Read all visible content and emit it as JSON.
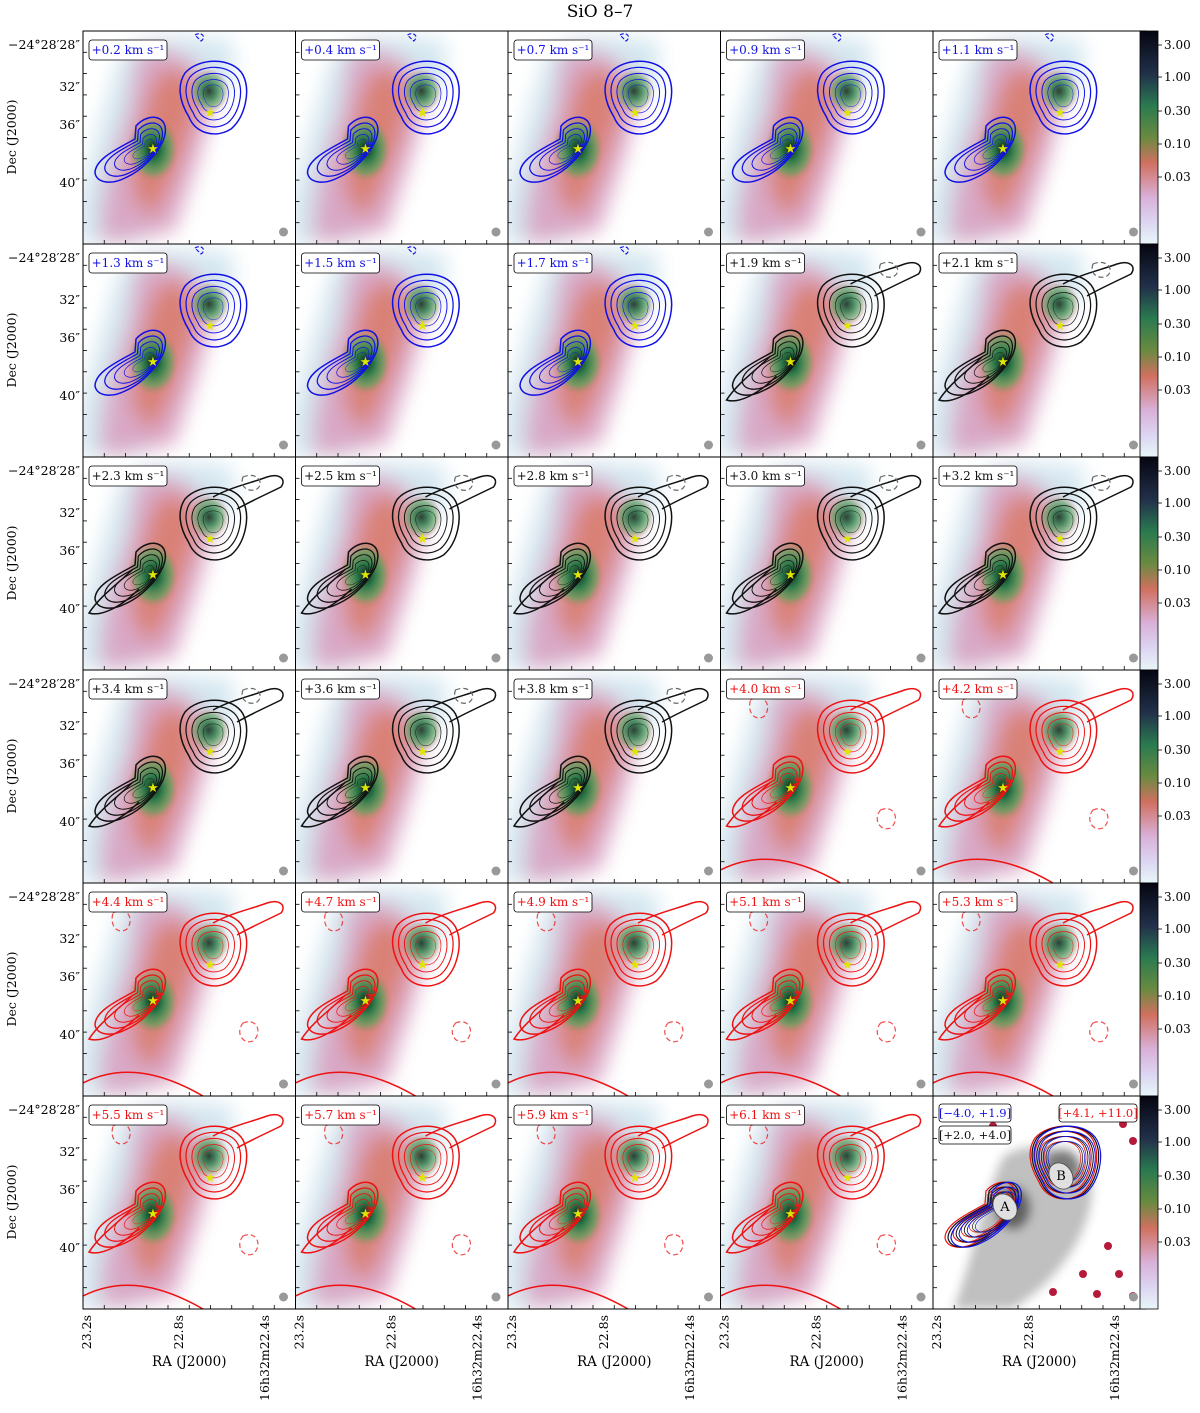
{
  "title": "SiO 8–7",
  "colors": {
    "blue": "#1010e6",
    "black": "#111111",
    "red": "#ee1111",
    "star": "#dfe600"
  },
  "chart_data": {
    "type": "heatmap",
    "title": "SiO 8–7",
    "xlabel": "RA (J2000)",
    "ylabel": "Dec (J2000)",
    "x_tick_labels": [
      "23.2s",
      "22.8s",
      "16h32m22.4s"
    ],
    "y_tick_labels": [
      "−24°28′28″",
      "32″",
      "36″",
      "40″"
    ],
    "colorbar": {
      "scale": "log",
      "ticks": [
        "3.00",
        "1.00",
        "0.30",
        "0.10",
        "0.03"
      ]
    },
    "velocity_unit": "km s⁻¹",
    "channels": [
      {
        "v": "+0.2",
        "color": "blue"
      },
      {
        "v": "+0.4",
        "color": "blue"
      },
      {
        "v": "+0.7",
        "color": "blue"
      },
      {
        "v": "+0.9",
        "color": "blue"
      },
      {
        "v": "+1.1",
        "color": "blue"
      },
      {
        "v": "+1.3",
        "color": "blue"
      },
      {
        "v": "+1.5",
        "color": "blue"
      },
      {
        "v": "+1.7",
        "color": "blue"
      },
      {
        "v": "+1.9",
        "color": "black"
      },
      {
        "v": "+2.1",
        "color": "black"
      },
      {
        "v": "+2.3",
        "color": "black"
      },
      {
        "v": "+2.5",
        "color": "black"
      },
      {
        "v": "+2.8",
        "color": "black"
      },
      {
        "v": "+3.0",
        "color": "black"
      },
      {
        "v": "+3.2",
        "color": "black"
      },
      {
        "v": "+3.4",
        "color": "black"
      },
      {
        "v": "+3.6",
        "color": "black"
      },
      {
        "v": "+3.8",
        "color": "black"
      },
      {
        "v": "+4.0",
        "color": "red"
      },
      {
        "v": "+4.2",
        "color": "red"
      },
      {
        "v": "+4.4",
        "color": "red"
      },
      {
        "v": "+4.7",
        "color": "red"
      },
      {
        "v": "+4.9",
        "color": "red"
      },
      {
        "v": "+5.1",
        "color": "red"
      },
      {
        "v": "+5.3",
        "color": "red"
      },
      {
        "v": "+5.5",
        "color": "red"
      },
      {
        "v": "+5.7",
        "color": "red"
      },
      {
        "v": "+5.9",
        "color": "red"
      },
      {
        "v": "+6.1",
        "color": "red"
      }
    ],
    "summary_panel": {
      "ranges": [
        {
          "label": "[−4.0, +1.9]",
          "color": "blue"
        },
        {
          "label": "[+2.0, +4.0]",
          "color": "black"
        },
        {
          "label": "[+4.1, +11.0]",
          "color": "red"
        }
      ],
      "sources": [
        "A",
        "B"
      ]
    }
  }
}
